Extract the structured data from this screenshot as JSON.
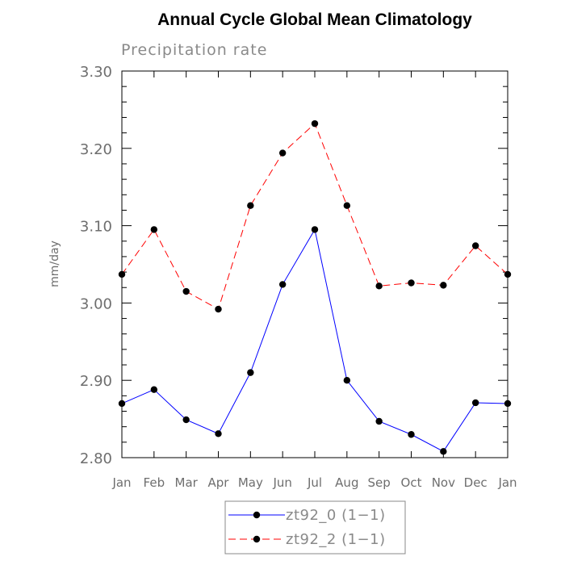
{
  "chart_data": {
    "type": "line",
    "title": "Annual Cycle Global Mean Climatology",
    "subtitle": "Precipitation rate",
    "xlabel": "",
    "ylabel": "mm/day",
    "categories": [
      "Jan",
      "Feb",
      "Mar",
      "Apr",
      "May",
      "Jun",
      "Jul",
      "Aug",
      "Sep",
      "Oct",
      "Nov",
      "Dec",
      "Jan"
    ],
    "ylim": [
      2.8,
      3.3
    ],
    "yticks": [
      "2.80",
      "2.90",
      "3.00",
      "3.10",
      "3.20",
      "3.30"
    ],
    "legend_position": "bottom",
    "series": [
      {
        "name": "zt92_0 (1−1)",
        "color": "#0000ff",
        "line_style": "solid",
        "values": [
          2.87,
          2.888,
          2.849,
          2.831,
          2.91,
          3.024,
          3.095,
          2.9,
          2.847,
          2.83,
          2.808,
          2.871,
          2.87
        ]
      },
      {
        "name": "zt92_2 (1−1)",
        "color": "#ff0000",
        "line_style": "dashed",
        "values": [
          3.037,
          3.095,
          3.015,
          2.992,
          3.126,
          3.194,
          3.232,
          3.126,
          3.022,
          3.026,
          3.023,
          3.074,
          3.037
        ]
      }
    ]
  }
}
